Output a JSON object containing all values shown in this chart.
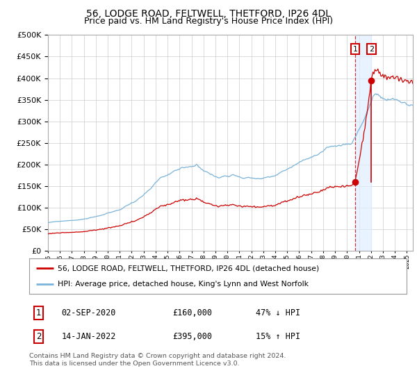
{
  "title": "56, LODGE ROAD, FELTWELL, THETFORD, IP26 4DL",
  "subtitle": "Price paid vs. HM Land Registry's House Price Index (HPI)",
  "title_fontsize": 10,
  "subtitle_fontsize": 9,
  "background_color": "#ffffff",
  "plot_bg_color": "#ffffff",
  "grid_color": "#cccccc",
  "hpi_color": "#7ab3d9",
  "price_color": "#cc0000",
  "sale1_date_num": 2020.67,
  "sale2_date_num": 2022.04,
  "sale1_price": 160000,
  "sale2_price": 395000,
  "legend1": "56, LODGE ROAD, FELTWELL, THETFORD, IP26 4DL (detached house)",
  "legend2": "HPI: Average price, detached house, King's Lynn and West Norfolk",
  "table_row1": [
    "1",
    "02-SEP-2020",
    "£160,000",
    "47% ↓ HPI"
  ],
  "table_row2": [
    "2",
    "14-JAN-2022",
    "£395,000",
    "15% ↑ HPI"
  ],
  "footnote": "Contains HM Land Registry data © Crown copyright and database right 2024.\nThis data is licensed under the Open Government Licence v3.0.",
  "ylim": [
    0,
    500000
  ],
  "xlim_start": 1995.0,
  "xlim_end": 2025.5
}
